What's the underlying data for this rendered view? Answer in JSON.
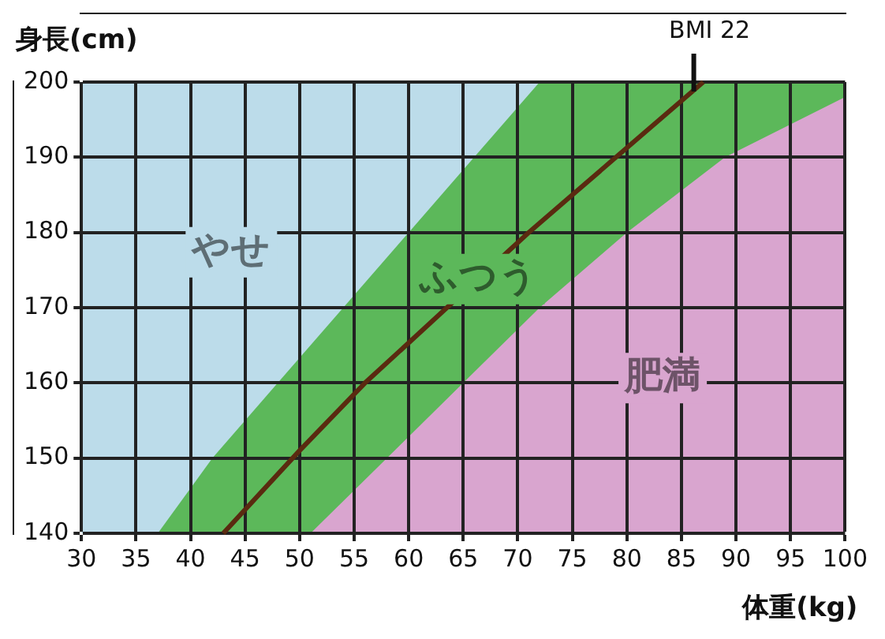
{
  "chart_data": {
    "type": "area",
    "xlabel": "体重(kg)",
    "ylabel": "身長(cm)",
    "xlim": [
      30,
      100
    ],
    "xticks": [
      30,
      35,
      40,
      45,
      50,
      55,
      60,
      65,
      70,
      75,
      80,
      85,
      90,
      95,
      100
    ],
    "ylim": [
      140,
      200
    ],
    "yticks": [
      140,
      150,
      160,
      170,
      180,
      190,
      200
    ],
    "grid": true,
    "legend": false,
    "series": [
      {
        "name": "やせ",
        "color": "#bcdcea",
        "x": [
          30,
          100
        ],
        "values": [
          200,
          200
        ]
      },
      {
        "name": "ふつう",
        "color": "#5cb85a",
        "x": [
          37,
          42,
          48,
          54,
          60,
          66,
          72,
          100
        ],
        "values": [
          140,
          150,
          160,
          170,
          180,
          190,
          200,
          200
        ]
      },
      {
        "name": "肥満",
        "color": "#d9a5cf",
        "x": [
          51,
          58,
          65,
          72,
          80,
          89,
          100
        ],
        "values": [
          140,
          150,
          160,
          170,
          180,
          190,
          198
        ]
      },
      {
        "type": "line",
        "name": "BMI 22",
        "color": "#5a2a10",
        "x": [
          43,
          50,
          56,
          63.5,
          71,
          79,
          87
        ],
        "values": [
          140,
          151,
          160,
          170,
          180,
          190,
          200
        ]
      }
    ]
  }
}
